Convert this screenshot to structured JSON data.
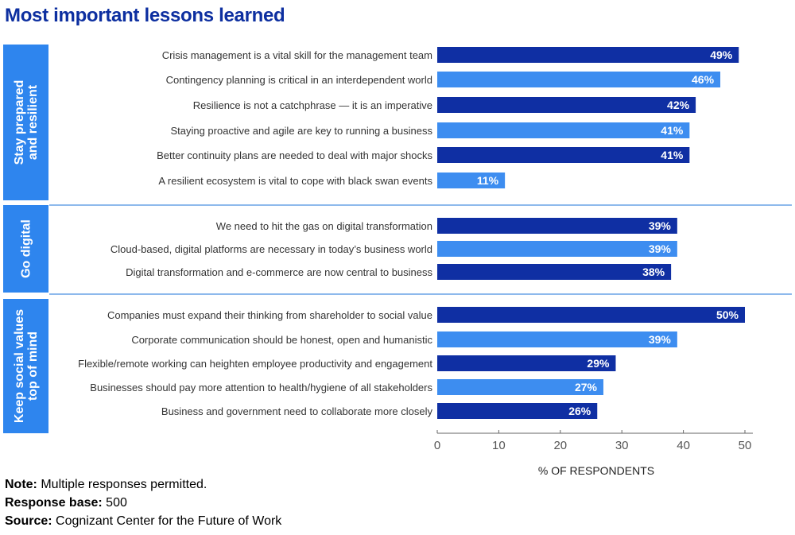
{
  "title": "Most important lessons learned",
  "colors": {
    "dark": "#0f2fa3",
    "light": "#3d8df0",
    "divider": "#4a8fe0",
    "axis": "#666666",
    "title": "#0d2fa0"
  },
  "chart_data": {
    "type": "bar",
    "orientation": "horizontal",
    "xlabel": "% OF RESPONDENTS",
    "xlim": [
      0,
      50
    ],
    "xticks": [
      0,
      10,
      20,
      30,
      40,
      50
    ],
    "value_suffix": "%",
    "groups": [
      {
        "label": "Stay prepared and resilient",
        "items": [
          {
            "category": "Crisis management is a vital skill for the management team",
            "value": 49
          },
          {
            "category": "Contingency planning is critical in an interdependent world",
            "value": 46
          },
          {
            "category": "Resilience is not a catchphrase — it is an imperative",
            "value": 42
          },
          {
            "category": "Staying proactive and agile are key to running a business",
            "value": 41
          },
          {
            "category": "Better continuity plans are needed to deal with major shocks",
            "value": 41
          },
          {
            "category": "A resilient ecosystem is vital to cope with black swan events",
            "value": 11
          }
        ]
      },
      {
        "label": "Go digital",
        "items": [
          {
            "category": "We need to hit the gas on digital transformation",
            "value": 39
          },
          {
            "category": "Cloud-based, digital platforms are necessary in today’s business world",
            "value": 39
          },
          {
            "category": "Digital transformation and e-commerce are now central to business",
            "value": 38
          }
        ]
      },
      {
        "label": "Keep social values top of mind",
        "items": [
          {
            "category": "Companies must expand their thinking from shareholder to social value",
            "value": 50
          },
          {
            "category": "Corporate communication should be honest, open and humanistic",
            "value": 39
          },
          {
            "category": "Flexible/remote working can heighten employee productivity and engagement",
            "value": 29
          },
          {
            "category": "Businesses should pay more attention to health/hygiene of all stakeholders",
            "value": 27
          },
          {
            "category": "Business and government need to collaborate more closely",
            "value": 26
          }
        ]
      }
    ]
  },
  "notes": {
    "note_label": "Note:",
    "note_text": " Multiple responses permitted.",
    "base_label": "Response base:",
    "base_text": " 500",
    "source_label": "Source:",
    "source_text": " Cognizant Center for the Future of Work"
  }
}
